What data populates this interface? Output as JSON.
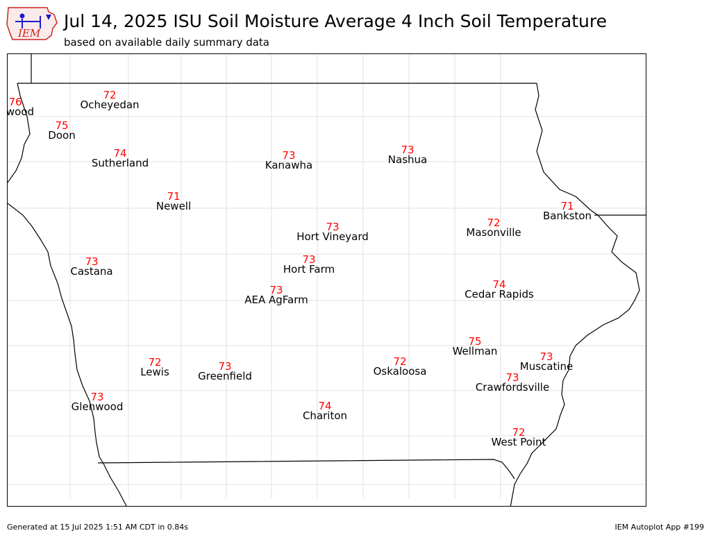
{
  "header": {
    "title": "Jul 14, 2025 ISU Soil Moisture Average 4 Inch Soil Temperature",
    "subtitle": "based on available daily summary data",
    "logo_text": "IEM"
  },
  "footer": {
    "generated": "Generated at 15 Jul 2025 1:51 AM CDT in 0.84s",
    "app": "IEM Autoplot App #199"
  },
  "colors": {
    "value": "#ff0000",
    "label": "#000000",
    "state_border": "#000000",
    "county_border": "#d9d9d9",
    "logo_red": "#cc2222",
    "logo_blue": "#1a1acc"
  },
  "stations": [
    {
      "name": "Inwood",
      "value": "76"
    },
    {
      "name": "Ocheyedan",
      "value": "72"
    },
    {
      "name": "Doon",
      "value": "75"
    },
    {
      "name": "Sutherland",
      "value": "74"
    },
    {
      "name": "Kanawha",
      "value": "73"
    },
    {
      "name": "Nashua",
      "value": "73"
    },
    {
      "name": "Newell",
      "value": "71"
    },
    {
      "name": "Bankston",
      "value": "71"
    },
    {
      "name": "Hort Vineyard",
      "value": "73"
    },
    {
      "name": "Masonville",
      "value": "72"
    },
    {
      "name": "Castana",
      "value": "73"
    },
    {
      "name": "Hort Farm",
      "value": "73"
    },
    {
      "name": "AEA AgFarm",
      "value": "73"
    },
    {
      "name": "Cedar Rapids",
      "value": "74"
    },
    {
      "name": "Wellman",
      "value": "75"
    },
    {
      "name": "Muscatine",
      "value": "73"
    },
    {
      "name": "Lewis",
      "value": "72"
    },
    {
      "name": "Greenfield",
      "value": "73"
    },
    {
      "name": "Oskaloosa",
      "value": "72"
    },
    {
      "name": "Crawfordsville",
      "value": "73"
    },
    {
      "name": "Glenwood",
      "value": "73"
    },
    {
      "name": "Chariton",
      "value": "74"
    },
    {
      "name": "West Point",
      "value": "72"
    }
  ]
}
